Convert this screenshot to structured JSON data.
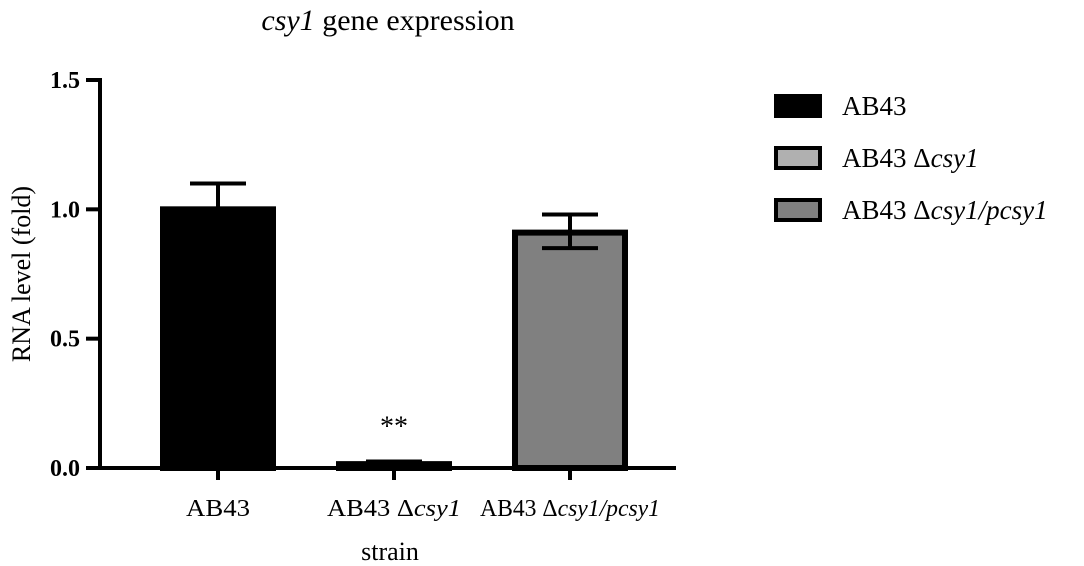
{
  "chart_data": {
    "type": "bar",
    "title_italic": "csy1",
    "title_rest": " gene expression",
    "xlabel": "strain",
    "ylabel": "RNA level (fold)",
    "ylim": [
      0,
      1.5
    ],
    "yticks": [
      "0.0",
      "0.5",
      "1.0",
      "1.5"
    ],
    "ytick_values": [
      0,
      0.5,
      1.0,
      1.5
    ],
    "legend_position": "right",
    "grid": false,
    "categories": [
      {
        "plain": "AB43 ",
        "delta": "",
        "italic": ""
      },
      {
        "plain": "AB43 ",
        "delta": "Δ",
        "italic": "csy1"
      },
      {
        "plain": "AB43 ",
        "delta": "Δ",
        "italic": "csy1/pcsy1"
      }
    ],
    "category_text": [
      "AB43",
      "AB43 Δcsy1",
      "AB43 Δcsy1/pcsy1"
    ],
    "values": [
      1.0,
      0.015,
      0.91
    ],
    "error_upper": [
      0.1,
      0.01,
      0.07
    ],
    "error_lower": [
      0.0,
      0.0,
      0.06
    ],
    "annotations": [
      "",
      "**",
      ""
    ],
    "colors": [
      "#000000",
      "#b0b0b0",
      "#808080"
    ],
    "edge_color": "#000000"
  }
}
